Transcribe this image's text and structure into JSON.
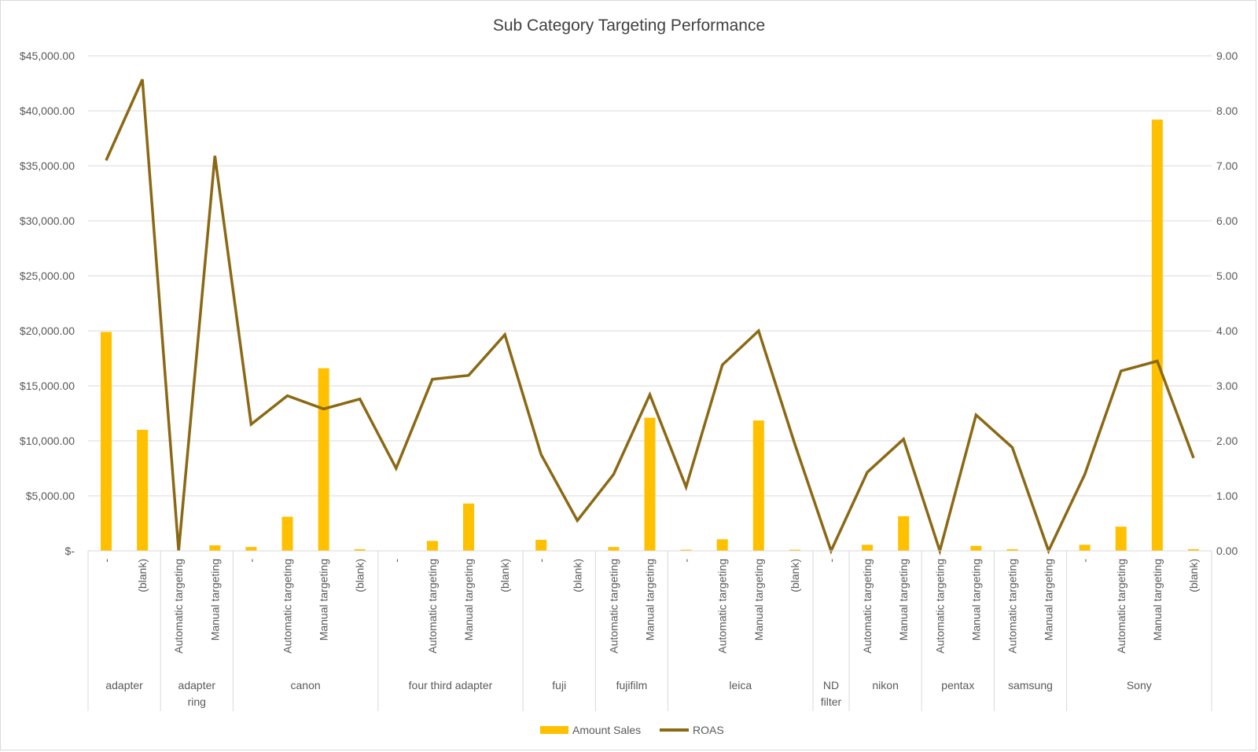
{
  "chart_data": {
    "type": "bar",
    "title": "Sub Category Targeting Performance",
    "xlabel": "",
    "ylabel": "",
    "y_left": {
      "range": [
        0,
        45000
      ],
      "ticks": [
        {
          "value": 0,
          "label": "$-"
        },
        {
          "value": 5000,
          "label": "$5,000.00"
        },
        {
          "value": 10000,
          "label": "$10,000.00"
        },
        {
          "value": 15000,
          "label": "$15,000.00"
        },
        {
          "value": 20000,
          "label": "$20,000.00"
        },
        {
          "value": 25000,
          "label": "$25,000.00"
        },
        {
          "value": 30000,
          "label": "$30,000.00"
        },
        {
          "value": 35000,
          "label": "$35,000.00"
        },
        {
          "value": 40000,
          "label": "$40,000.00"
        },
        {
          "value": 45000,
          "label": "$45,000.00"
        }
      ]
    },
    "y_right": {
      "range": [
        0,
        9
      ],
      "ticks": [
        {
          "value": 0,
          "label": "0.00"
        },
        {
          "value": 1,
          "label": "1.00"
        },
        {
          "value": 2,
          "label": "2.00"
        },
        {
          "value": 3,
          "label": "3.00"
        },
        {
          "value": 4,
          "label": "4.00"
        },
        {
          "value": 5,
          "label": "5.00"
        },
        {
          "value": 6,
          "label": "6.00"
        },
        {
          "value": 7,
          "label": "7.00"
        },
        {
          "value": 8,
          "label": "8.00"
        },
        {
          "value": 9,
          "label": "9.00"
        }
      ]
    },
    "groups": [
      {
        "name": "adapter",
        "count": 2
      },
      {
        "name": "adapter ring",
        "count": 2
      },
      {
        "name": "canon",
        "count": 4
      },
      {
        "name": "four third adapter",
        "count": 4
      },
      {
        "name": "fuji",
        "count": 2
      },
      {
        "name": "fujifilm",
        "count": 2
      },
      {
        "name": "leica",
        "count": 4
      },
      {
        "name": "ND filter",
        "count": 1
      },
      {
        "name": "nikon",
        "count": 2
      },
      {
        "name": "pentax",
        "count": 2
      },
      {
        "name": "samsung",
        "count": 2
      },
      {
        "name": "Sony",
        "count": 4
      }
    ],
    "categories": [
      "-",
      "(blank)",
      "Automatic targeting",
      "Manual targeting",
      "-",
      "Automatic targeting",
      "Manual targeting",
      "(blank)",
      "-",
      "Automatic targeting",
      "Manual targeting",
      "(blank)",
      "-",
      "(blank)",
      "Automatic targeting",
      "Manual targeting",
      "-",
      "Automatic targeting",
      "Manual targeting",
      "(blank)",
      "-",
      "Automatic targeting",
      "Manual targeting",
      "Automatic targeting",
      "Manual targeting",
      "Automatic targeting",
      "Manual targeting",
      "-",
      "Automatic targeting",
      "Manual targeting",
      "(blank)"
    ],
    "series": [
      {
        "name": "Amount Sales",
        "type": "bar",
        "axis": "left",
        "color": "#FFC000",
        "values": [
          19900,
          11000,
          0,
          500,
          350,
          3100,
          16600,
          150,
          0,
          900,
          4300,
          0,
          1000,
          0,
          350,
          12100,
          100,
          1050,
          11850,
          100,
          0,
          550,
          3150,
          0,
          450,
          150,
          0,
          550,
          2200,
          39200,
          150
        ]
      },
      {
        "name": "ROAS",
        "type": "line",
        "axis": "right",
        "color": "#8B6914",
        "values": [
          7.1,
          8.57,
          0.0,
          7.18,
          2.3,
          2.82,
          2.58,
          2.76,
          1.5,
          3.12,
          3.19,
          3.93,
          1.75,
          0.55,
          1.39,
          2.84,
          1.16,
          3.38,
          4.0,
          1.94,
          0.0,
          1.43,
          2.03,
          0.0,
          2.47,
          1.88,
          0.0,
          1.39,
          3.27,
          3.45,
          1.69
        ]
      }
    ],
    "legend": [
      {
        "label": "Amount Sales",
        "symbol": "bar"
      },
      {
        "label": "ROAS",
        "symbol": "line"
      }
    ],
    "legend_position": "bottom",
    "grid": true
  }
}
